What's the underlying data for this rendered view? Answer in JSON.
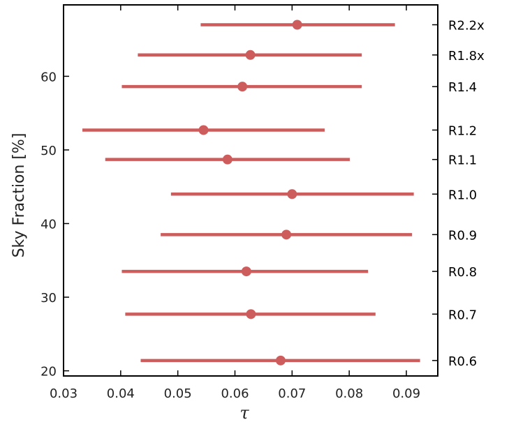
{
  "chart_data": {
    "type": "scatter",
    "title": "",
    "xlabel": "τ",
    "ylabel": "Sky Fraction [%]",
    "xlim": [
      0.03,
      0.0955
    ],
    "ylim": [
      19.3,
      69.7
    ],
    "x_ticks": [
      0.03,
      0.04,
      0.05,
      0.06,
      0.07,
      0.08,
      0.09
    ],
    "x_tick_labels": [
      "0.03",
      "0.04",
      "0.05",
      "0.06",
      "0.07",
      "0.08",
      "0.09"
    ],
    "y_ticks": [
      20,
      30,
      40,
      50,
      60
    ],
    "y_tick_labels": [
      "20",
      "30",
      "40",
      "50",
      "60"
    ],
    "grid": false,
    "colors": {
      "series": "#cd5c5c",
      "axis": "#000000"
    },
    "series": [
      {
        "points": [
          {
            "label": "R2.2x",
            "y": 67.0,
            "x": 0.0709,
            "xmin": 0.054,
            "xmax": 0.088
          },
          {
            "label": "R1.8x",
            "y": 62.9,
            "x": 0.0627,
            "xmin": 0.043,
            "xmax": 0.0822
          },
          {
            "label": "R1.4",
            "y": 58.6,
            "x": 0.0613,
            "xmin": 0.0402,
            "xmax": 0.0822
          },
          {
            "label": "R1.2",
            "y": 52.7,
            "x": 0.0545,
            "xmin": 0.0333,
            "xmax": 0.0757
          },
          {
            "label": "R1.1",
            "y": 48.7,
            "x": 0.0587,
            "xmin": 0.0373,
            "xmax": 0.0801
          },
          {
            "label": "R1.0",
            "y": 44.0,
            "x": 0.07,
            "xmin": 0.0488,
            "xmax": 0.0913
          },
          {
            "label": "R0.9",
            "y": 38.5,
            "x": 0.069,
            "xmin": 0.047,
            "xmax": 0.091
          },
          {
            "label": "R0.8",
            "y": 33.5,
            "x": 0.062,
            "xmin": 0.0402,
            "xmax": 0.0833
          },
          {
            "label": "R0.7",
            "y": 27.7,
            "x": 0.0628,
            "xmin": 0.0408,
            "xmax": 0.0846
          },
          {
            "label": "R0.6",
            "y": 21.4,
            "x": 0.068,
            "xmin": 0.0435,
            "xmax": 0.0924
          }
        ]
      }
    ]
  }
}
